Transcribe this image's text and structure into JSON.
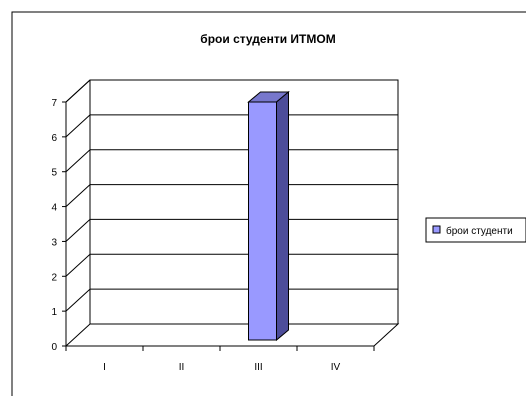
{
  "chart_data": {
    "type": "bar",
    "title": "брои студенти ИТМОМ",
    "categories": [
      "I",
      "II",
      "III",
      "IV"
    ],
    "series": [
      {
        "name": "брои студенти",
        "values": [
          0,
          0,
          7,
          0
        ]
      }
    ],
    "ylim": [
      0,
      7
    ],
    "yticks": [
      0,
      1,
      2,
      3,
      4,
      5,
      6,
      7
    ],
    "xlabel": "",
    "ylabel": "",
    "grid": true,
    "three_d": true,
    "legend_position": "right"
  },
  "colors": {
    "bar_front": "#9999ff",
    "bar_side": "#4d4d9a",
    "bar_top": "#7777cc",
    "axis": "#000000",
    "background": "#ffffff"
  }
}
